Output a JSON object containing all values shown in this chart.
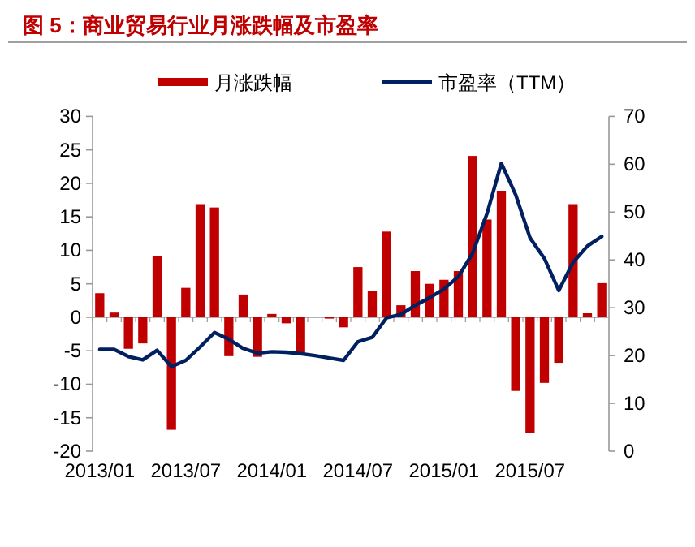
{
  "chart_data": {
    "type": "bar",
    "title": "图 5：商业贸易行业月涨跌幅及市盈率",
    "categories": [
      "2013/01",
      null,
      null,
      null,
      null,
      null,
      "2013/07",
      null,
      null,
      null,
      null,
      null,
      "2014/01",
      null,
      null,
      null,
      null,
      null,
      "2014/07",
      null,
      null,
      null,
      null,
      null,
      "2015/01",
      null,
      null,
      null,
      null,
      null,
      "2015/07",
      null,
      null,
      null,
      null,
      null
    ],
    "series": [
      {
        "name": "月涨跌幅",
        "color": "#c00000",
        "values": [
          3.6,
          0.7,
          -4.7,
          -3.9,
          9.2,
          -16.8,
          4.4,
          16.9,
          16.4,
          -5.8,
          3.4,
          -5.9,
          0.5,
          -0.9,
          -5.5,
          0.1,
          -0.2,
          -1.5,
          7.5,
          3.9,
          12.8,
          1.8,
          6.9,
          5.0,
          5.6,
          6.9,
          24.1,
          14.6,
          18.9,
          -11.0,
          -17.3,
          -9.8,
          -6.8,
          16.9,
          0.6,
          5.1
        ]
      },
      {
        "name": "市盈率（TTM）",
        "type": "line",
        "axis": "y2",
        "color": "#002060",
        "values": [
          21.3,
          21.3,
          19.8,
          19.1,
          21.1,
          17.7,
          19.0,
          21.8,
          24.8,
          23.4,
          21.5,
          20.5,
          20.8,
          20.7,
          20.4,
          20.0,
          19.5,
          19.0,
          22.9,
          23.8,
          27.9,
          28.6,
          30.5,
          32.1,
          33.9,
          36.5,
          41.4,
          49.7,
          60.2,
          53.6,
          44.6,
          40.3,
          33.6,
          39.5,
          42.9,
          44.9
        ]
      }
    ],
    "ylim": [
      -20,
      30
    ],
    "yticks": [
      -20,
      -15,
      -10,
      -5,
      0,
      5,
      10,
      15,
      20,
      25,
      30
    ],
    "y2lim": [
      0,
      70
    ],
    "y2ticks": [
      0,
      10,
      20,
      30,
      40,
      50,
      60,
      70
    ],
    "legend": "top"
  }
}
